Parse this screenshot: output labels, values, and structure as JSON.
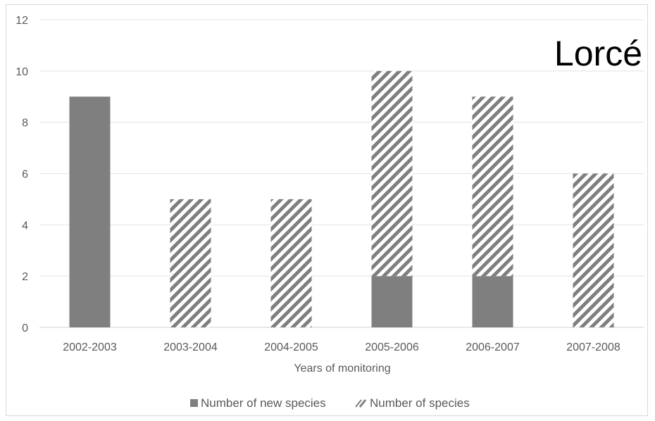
{
  "chart_data": {
    "type": "bar",
    "stacked": true,
    "title": "",
    "panel_label": "Lorcé",
    "xlabel": "Years of monitoring",
    "ylabel": "",
    "ylim": [
      0,
      12
    ],
    "yticks": [
      0,
      2,
      4,
      6,
      8,
      10,
      12
    ],
    "grid": true,
    "legend_position": "bottom",
    "categories": [
      "2002-2003",
      "2003-2004",
      "2004-2005",
      "2005-2006",
      "2006-2007",
      "2007-2008"
    ],
    "series": [
      {
        "name": "Number of new species",
        "values": [
          9,
          0,
          0,
          2,
          2,
          0
        ],
        "color": "#7f7f7f",
        "style": "solid"
      },
      {
        "name": "Number of species",
        "values": [
          0,
          5,
          5,
          8,
          7,
          6
        ],
        "color": "#7f7f7f",
        "style": "hatched"
      }
    ]
  }
}
